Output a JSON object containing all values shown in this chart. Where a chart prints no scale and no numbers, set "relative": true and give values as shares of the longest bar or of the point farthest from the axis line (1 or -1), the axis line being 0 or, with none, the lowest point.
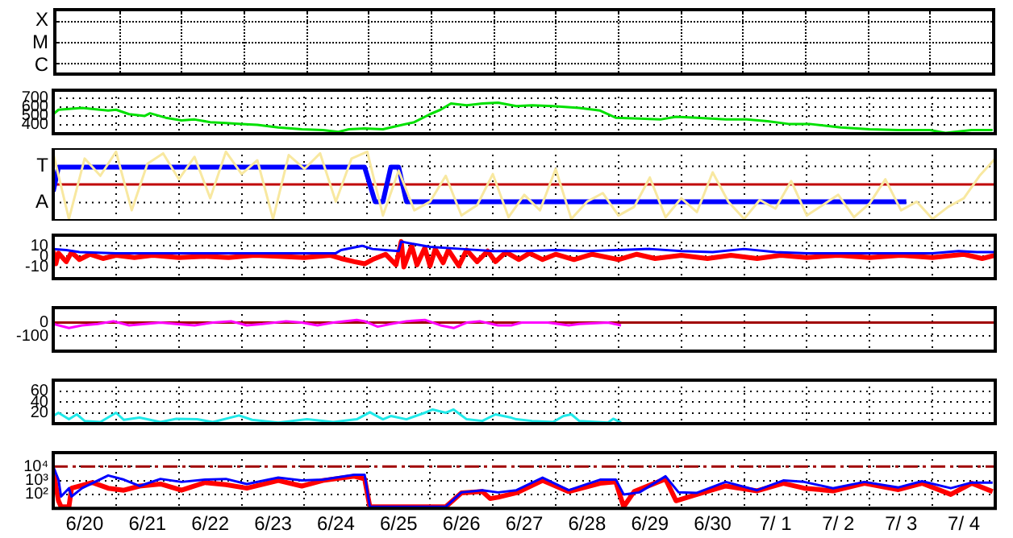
{
  "chart_data": [
    {
      "type": "other",
      "annotations": [
        "X",
        "M",
        "C"
      ]
    },
    {
      "type": "line",
      "marker": "none",
      "grid": true,
      "tick_labels": "y",
      "xlim": [
        "--06-20",
        "--07-05"
      ],
      "xticks": [
        {
          "value": "--06-21",
          "label": null
        },
        {
          "value": "--06-22",
          "label": null
        },
        {
          "value": "--06-23",
          "label": null
        },
        {
          "value": "--06-24",
          "label": null
        },
        {
          "value": "--06-25",
          "label": null
        },
        {
          "value": "--06-26",
          "label": null
        },
        {
          "value": "--06-27",
          "label": null
        },
        {
          "value": "--06-28",
          "label": null
        },
        {
          "value": "--06-29",
          "label": null
        },
        {
          "value": "--06-30",
          "label": null
        },
        {
          "value": "--07-01",
          "label": null
        },
        {
          "value": "--07-02",
          "label": null
        },
        {
          "value": "--07-03",
          "label": null
        },
        {
          "value": "--07-04",
          "label": null
        }
      ],
      "ylim": [
        300,
        790
      ],
      "yticks": [
        400,
        500,
        600,
        700
      ],
      "series": [
        {
          "color": "#00e000",
          "x": [
            "--06-20T00:00",
            "--06-20T02:00",
            "--06-20T11:00",
            "--06-20T21:00",
            "--06-21T00:00",
            "--06-21T05:00",
            "--06-21T11:00",
            "--06-21T13:00",
            "--06-21T19:00",
            "--06-22T01:00",
            "--06-22T06:00",
            "--06-22T12:00",
            "--06-22T18:00",
            "--06-23T00:00",
            "--06-23T06:00",
            "--06-23T14:00",
            "--06-23T23:00",
            "--06-24T07:00",
            "--06-24T13:00",
            "--06-24T17:00",
            "--06-24T23:00",
            "--06-25T06:00",
            "--06-25T12:00",
            "--06-25T18:00",
            "--06-26T00:00",
            "--06-26T04:00",
            "--06-26T08:00",
            "--06-26T14:00",
            "--06-26T20:00",
            "--06-27T02:00",
            "--06-27T09:00",
            "--06-27T15:00",
            "--06-27T23:00",
            "--06-28T09:00",
            "--06-28T17:00",
            "--06-28T23:00",
            "--06-29T08:00",
            "--06-29T16:00",
            "--06-29T22:00",
            "--06-30T06:00",
            "--06-30T17:00",
            "--07-01T01:00",
            "--07-01T09:00",
            "--07-01T17:00",
            "--07-02T01:00",
            "--07-02T13:00",
            "--07-03T00:00",
            "--07-03T11:00",
            "--07-03T23:00",
            "--07-04T05:00",
            "--07-04T15:00",
            "--07-04T23:00"
          ],
          "values": [
            520,
            570,
            590,
            560,
            570,
            520,
            500,
            530,
            480,
            450,
            460,
            430,
            420,
            410,
            400,
            370,
            350,
            340,
            320,
            350,
            360,
            350,
            390,
            430,
            520,
            570,
            640,
            620,
            640,
            650,
            610,
            620,
            610,
            590,
            560,
            480,
            470,
            460,
            490,
            480,
            460,
            460,
            440,
            410,
            410,
            370,
            350,
            340,
            340,
            310,
            340,
            340
          ]
        }
      ]
    },
    {
      "type": "line",
      "marker": "none",
      "grid": true,
      "relative": true,
      "tick_labels": "y",
      "xlim": [
        "--06-20",
        "--07-05"
      ],
      "xticks": [
        {
          "value": "--06-21",
          "label": null
        },
        {
          "value": "--06-22",
          "label": null
        },
        {
          "value": "--06-23",
          "label": null
        },
        {
          "value": "--06-24",
          "label": null
        },
        {
          "value": "--06-25",
          "label": null
        },
        {
          "value": "--06-26",
          "label": null
        },
        {
          "value": "--06-27",
          "label": null
        },
        {
          "value": "--06-28",
          "label": null
        },
        {
          "value": "--06-29",
          "label": null
        },
        {
          "value": "--06-30",
          "label": null
        },
        {
          "value": "--07-01",
          "label": null
        },
        {
          "value": "--07-02",
          "label": null
        },
        {
          "value": "--07-03",
          "label": null
        },
        {
          "value": "--07-04",
          "label": null
        }
      ],
      "annotations": [
        "T",
        "A"
      ],
      "ref_lines": [
        {
          "axis": "y",
          "value": 0,
          "color": "#c00000"
        }
      ],
      "series": [
        {
          "color": "#f8e8a0",
          "x": [
            "--06-20T00:00",
            "--06-20T06:00",
            "--06-20T12:00",
            "--06-20T18:00",
            "--06-21T00:00",
            "--06-21T06:00",
            "--06-21T12:00",
            "--06-21T18:00",
            "--06-22T00:00",
            "--06-22T06:00",
            "--06-22T12:00",
            "--06-22T18:00",
            "--06-23T00:00",
            "--06-23T06:00",
            "--06-23T12:00",
            "--06-23T18:00",
            "--06-24T00:00",
            "--06-24T06:00",
            "--06-24T12:00",
            "--06-24T18:00",
            "--06-25T00:00",
            "--06-25T06:00",
            "--06-25T12:00",
            "--06-25T18:00",
            "--06-26T00:00",
            "--06-26T06:00",
            "--06-26T12:00",
            "--06-26T18:00",
            "--06-27T00:00",
            "--06-27T06:00",
            "--06-27T12:00",
            "--06-27T18:00",
            "--06-28T00:00",
            "--06-28T06:00",
            "--06-28T12:00",
            "--06-28T18:00",
            "--06-29T00:00",
            "--06-29T06:00",
            "--06-29T12:00",
            "--06-29T18:00",
            "--06-30T00:00",
            "--06-30T06:00",
            "--06-30T12:00",
            "--06-30T18:00",
            "--07-01T00:00",
            "--07-01T06:00",
            "--07-01T12:00",
            "--07-01T18:00",
            "--07-02T00:00",
            "--07-02T06:00",
            "--07-02T12:00",
            "--07-02T18:00",
            "--07-03T00:00",
            "--07-03T06:00",
            "--07-03T12:00",
            "--07-03T18:00",
            "--07-04T00:00",
            "--07-04T06:00",
            "--07-04T12:00",
            "--07-04T18:00",
            "--07-05T00:00"
          ],
          "values": [
            0.9,
            -1.0,
            0.75,
            0.25,
            0.95,
            -0.75,
            0.6,
            0.9,
            0.15,
            0.8,
            -0.4,
            0.95,
            0.3,
            0.7,
            -1.0,
            0.85,
            0.45,
            0.9,
            -0.5,
            0.75,
            0.95,
            -0.9,
            0.4,
            -0.75,
            -0.5,
            0.25,
            -0.9,
            -0.6,
            0.3,
            -0.95,
            -0.3,
            -0.75,
            0.45,
            -1.0,
            -0.5,
            -0.25,
            -0.9,
            -0.65,
            0.2,
            -0.95,
            -0.4,
            -0.8,
            0.35,
            -0.5,
            -1.0,
            -0.45,
            -0.7,
            0.1,
            -0.9,
            -0.6,
            -0.3,
            -0.95,
            -0.55,
            0.15,
            -0.75,
            -0.5,
            -1.0,
            -0.65,
            -0.4,
            0.25,
            0.75
          ]
        },
        {
          "color": "#0000ff",
          "x": [
            "--06-20T00:00",
            "--06-20T02:00",
            "--06-24T23:00",
            "--06-25T03:00",
            "--06-25T06:00",
            "--06-25T09:00",
            "--06-25T12:00",
            "--06-25T15:00",
            "--07-03T14:00"
          ],
          "values": [
            -0.2,
            0.5,
            0.5,
            -0.5,
            -0.5,
            0.5,
            0.5,
            -0.5,
            -0.5
          ]
        }
      ]
    },
    {
      "type": "line",
      "marker": "none",
      "grid": true,
      "tick_labels": "y",
      "xlim": [
        "--06-20",
        "--07-05"
      ],
      "xticks": [
        {
          "value": "--06-21",
          "label": null
        },
        {
          "value": "--06-22",
          "label": null
        },
        {
          "value": "--06-23",
          "label": null
        },
        {
          "value": "--06-24",
          "label": null
        },
        {
          "value": "--06-25",
          "label": null
        },
        {
          "value": "--06-26",
          "label": null
        },
        {
          "value": "--06-27",
          "label": null
        },
        {
          "value": "--06-28",
          "label": null
        },
        {
          "value": "--06-29",
          "label": null
        },
        {
          "value": "--06-30",
          "label": null
        },
        {
          "value": "--07-01",
          "label": null
        },
        {
          "value": "--07-02",
          "label": null
        },
        {
          "value": "--07-03",
          "label": null
        },
        {
          "value": "--07-04",
          "label": null
        }
      ],
      "ylim": [
        -21,
        20
      ],
      "yticks": [
        -10,
        0,
        10
      ],
      "series": [
        {
          "color": "#0000ff",
          "x": [
            "--06-20T00:00",
            "--06-20T05:00",
            "--06-20T10:00",
            "--06-21T00:00",
            "--06-22T00:00",
            "--06-23T00:00",
            "--06-24T00:00",
            "--06-24T12:00",
            "--06-24T14:00",
            "--06-24T22:00",
            "--06-25T02:00",
            "--06-25T07:00",
            "--06-25T12:00",
            "--06-25T13:00",
            "--06-25T17:00",
            "--06-26T00:00",
            "--06-26T12:00",
            "--06-27T00:00",
            "--06-27T12:00",
            "--06-28T00:00",
            "--06-28T12:00",
            "--06-29T00:00",
            "--06-29T12:00",
            "--06-30T00:00",
            "--06-30T12:00",
            "--07-01T00:00",
            "--07-01T12:00",
            "--07-02T00:00",
            "--07-03T00:00",
            "--07-04T00:00",
            "--07-04T10:00",
            "--07-04T17:00",
            "--07-05T00:00"
          ],
          "values": [
            7,
            6,
            4,
            3,
            3,
            3,
            3,
            3,
            6,
            10,
            7,
            6,
            5,
            14,
            12,
            9,
            7,
            5,
            5,
            6,
            5,
            6,
            7,
            5,
            4,
            7,
            4,
            3,
            3,
            3,
            5,
            4,
            4
          ]
        },
        {
          "color": "#ff0000",
          "x": [
            "--06-20T00:00",
            "--06-20T01:00",
            "--06-20T02:00",
            "--06-20T05:00",
            "--06-20T07:00",
            "--06-20T10:00",
            "--06-20T14:00",
            "--06-20T19:00",
            "--06-21T00:00",
            "--06-21T07:00",
            "--06-21T14:00",
            "--06-22T00:00",
            "--06-22T10:00",
            "--06-22T19:00",
            "--06-23T05:00",
            "--06-23T14:00",
            "--06-24T00:00",
            "--06-24T10:00",
            "--06-24T14:00",
            "--06-24T19:00",
            "--06-24T23:00",
            "--06-25T02:00",
            "--06-25T07:00",
            "--06-25T11:00",
            "--06-25T13:00",
            "--06-25T14:00",
            "--06-25T17:00",
            "--06-25T19:00",
            "--06-25T22:00",
            "--06-26T00:00",
            "--06-26T02:00",
            "--06-26T05:00",
            "--06-26T07:00",
            "--06-26T11:00",
            "--06-26T14:00",
            "--06-26T18:00",
            "--06-26T22:00",
            "--06-27T01:00",
            "--06-27T05:00",
            "--06-27T10:00",
            "--06-27T14:00",
            "--06-27T19:00",
            "--06-28T00:00",
            "--06-28T07:00",
            "--06-28T14:00",
            "--06-29T00:00",
            "--06-29T07:00",
            "--06-29T14:00",
            "--06-30T00:00",
            "--06-30T10:00",
            "--06-30T19:00",
            "--07-01T05:00",
            "--07-01T14:00",
            "--07-02T00:00",
            "--07-02T12:00",
            "--07-03T00:00",
            "--07-03T12:00",
            "--07-04T00:00",
            "--07-04T12:00",
            "--07-04T19:00",
            "--07-05T00:00"
          ],
          "values": [
            5,
            -7,
            3,
            -5,
            4,
            -3,
            2,
            -2,
            1,
            -1,
            1,
            -1,
            0,
            -1,
            1,
            0,
            -1,
            1,
            -2,
            -5,
            -7,
            -3,
            2,
            -8,
            14,
            -10,
            10,
            -8,
            8,
            -9,
            7,
            -6,
            6,
            -9,
            6,
            -5,
            5,
            -5,
            4,
            -3,
            3,
            -3,
            2,
            -3,
            2,
            -3,
            2,
            -2,
            1,
            -2,
            1,
            -2,
            1,
            -1,
            1,
            -1,
            1,
            -1,
            2,
            -2,
            1
          ]
        }
      ]
    },
    {
      "type": "line",
      "marker": "none",
      "grid": true,
      "tick_labels": "y",
      "xlim": [
        "--06-20",
        "--07-05"
      ],
      "xticks": [
        {
          "value": "--06-21",
          "label": null
        },
        {
          "value": "--06-22",
          "label": null
        },
        {
          "value": "--06-23",
          "label": null
        },
        {
          "value": "--06-24",
          "label": null
        },
        {
          "value": "--06-25",
          "label": null
        },
        {
          "value": "--06-26",
          "label": null
        },
        {
          "value": "--06-27",
          "label": null
        },
        {
          "value": "--06-28",
          "label": null
        },
        {
          "value": "--06-29",
          "label": null
        },
        {
          "value": "--06-30",
          "label": null
        },
        {
          "value": "--07-01",
          "label": null
        },
        {
          "value": "--07-02",
          "label": null
        },
        {
          "value": "--07-03",
          "label": null
        },
        {
          "value": "--07-04",
          "label": null
        }
      ],
      "ylim": [
        -210,
        110
      ],
      "yticks": [
        -100,
        0
      ],
      "ref_lines": [
        {
          "axis": "y",
          "value": 0,
          "color": "#a00000"
        }
      ],
      "series": [
        {
          "color": "#ff00ff",
          "x": [
            "--06-20T00:00",
            "--06-20T06:00",
            "--06-20T11:00",
            "--06-20T17:00",
            "--06-20T23:00",
            "--06-21T05:00",
            "--06-21T11:00",
            "--06-21T17:00",
            "--06-21T23:00",
            "--06-22T06:00",
            "--06-22T13:00",
            "--06-22T20:00",
            "--06-23T02:00",
            "--06-23T08:00",
            "--06-23T17:00",
            "--06-23T23:00",
            "--06-24T05:00",
            "--06-24T11:00",
            "--06-24T20:00",
            "--06-24T23:00",
            "--06-25T04:00",
            "--06-25T09:00",
            "--06-25T15:00",
            "--06-25T22:00",
            "--06-26T04:00",
            "--06-26T09:00",
            "--06-26T14:00",
            "--06-26T19:00",
            "--06-27T02:00",
            "--06-27T07:00",
            "--06-27T11:00",
            "--06-27T21:00",
            "--06-28T05:00",
            "--06-28T09:00",
            "--06-28T20:00",
            "--06-29T01:00"
          ],
          "values": [
            -10,
            -40,
            -20,
            -10,
            10,
            -20,
            -10,
            0,
            -10,
            -20,
            0,
            10,
            -20,
            -10,
            10,
            0,
            -20,
            0,
            20,
            10,
            -30,
            -10,
            10,
            20,
            -20,
            -40,
            0,
            10,
            -20,
            -20,
            0,
            0,
            -20,
            -10,
            0,
            -20
          ]
        }
      ]
    },
    {
      "type": "line",
      "marker": "none",
      "grid": true,
      "tick_labels": "y",
      "xlim": [
        "--06-20",
        "--07-05"
      ],
      "xticks": [
        {
          "value": "--06-21",
          "label": null
        },
        {
          "value": "--06-22",
          "label": null
        },
        {
          "value": "--06-23",
          "label": null
        },
        {
          "value": "--06-24",
          "label": null
        },
        {
          "value": "--06-25",
          "label": null
        },
        {
          "value": "--06-26",
          "label": null
        },
        {
          "value": "--06-27",
          "label": null
        },
        {
          "value": "--06-28",
          "label": null
        },
        {
          "value": "--06-29",
          "label": null
        },
        {
          "value": "--06-30",
          "label": null
        },
        {
          "value": "--07-01",
          "label": null
        },
        {
          "value": "--07-02",
          "label": null
        },
        {
          "value": "--07-03",
          "label": null
        },
        {
          "value": "--07-04",
          "label": null
        }
      ],
      "ylim": [
        0,
        80
      ],
      "yticks": [
        20,
        40,
        60
      ],
      "series": [
        {
          "color": "#20e8e8",
          "x": [
            "--06-20T00:00",
            "--06-20T02:00",
            "--06-20T06:00",
            "--06-20T09:00",
            "--06-20T12:00",
            "--06-20T18:00",
            "--06-21T00:00",
            "--06-21T03:00",
            "--06-21T09:00",
            "--06-21T17:00",
            "--06-21T23:00",
            "--06-22T07:00",
            "--06-22T13:00",
            "--06-22T23:00",
            "--06-23T04:00",
            "--06-23T14:00",
            "--06-24T01:00",
            "--06-24T11:00",
            "--06-24T20:00",
            "--06-25T01:00",
            "--06-25T06:00",
            "--06-25T09:00",
            "--06-25T15:00",
            "--06-25T22:00",
            "--06-26T01:00",
            "--06-26T06:00",
            "--06-26T09:00",
            "--06-26T14:00",
            "--06-26T20:00",
            "--06-27T01:00",
            "--06-27T07:00",
            "--06-27T09:00",
            "--06-27T15:00",
            "--06-27T23:00",
            "--06-28T03:00",
            "--06-28T06:00",
            "--06-28T09:00",
            "--06-28T20:00",
            "--06-28T22:00",
            "--06-29T01:00"
          ],
          "values": [
            14,
            20,
            8,
            17,
            5,
            3,
            20,
            7,
            11,
            3,
            9,
            8,
            3,
            15,
            7,
            2,
            8,
            3,
            8,
            21,
            8,
            14,
            8,
            20,
            26,
            20,
            26,
            8,
            5,
            17,
            11,
            8,
            5,
            3,
            14,
            17,
            5,
            2,
            9,
            2
          ]
        }
      ]
    },
    {
      "type": "line",
      "marker": "none",
      "grid": true,
      "log": "y",
      "xlim": [
        "--06-20",
        "--07-05"
      ],
      "xticks": [
        {
          "value": "--06-20T12:00",
          "label": "6/20"
        },
        {
          "value": "--06-21",
          "label": null
        },
        {
          "value": "--06-21T12:00",
          "label": "6/21"
        },
        {
          "value": "--06-22",
          "label": null
        },
        {
          "value": "--06-22T12:00",
          "label": "6/22"
        },
        {
          "value": "--06-23",
          "label": null
        },
        {
          "value": "--06-23T12:00",
          "label": "6/23"
        },
        {
          "value": "--06-24",
          "label": null
        },
        {
          "value": "--06-24T12:00",
          "label": "6/24"
        },
        {
          "value": "--06-25",
          "label": null
        },
        {
          "value": "--06-25T12:00",
          "label": "6/25"
        },
        {
          "value": "--06-26",
          "label": null
        },
        {
          "value": "--06-26T12:00",
          "label": "6/26"
        },
        {
          "value": "--06-27",
          "label": null
        },
        {
          "value": "--06-27T12:00",
          "label": "6/27"
        },
        {
          "value": "--06-28",
          "label": null
        },
        {
          "value": "--06-28T12:00",
          "label": "6/28"
        },
        {
          "value": "--06-29",
          "label": null
        },
        {
          "value": "--06-29T12:00",
          "label": "6/29"
        },
        {
          "value": "--06-30",
          "label": null
        },
        {
          "value": "--06-30T12:00",
          "label": "6/30"
        },
        {
          "value": "--07-01",
          "label": null
        },
        {
          "value": "--07-01T12:00",
          "label": "7/ 1"
        },
        {
          "value": "--07-02",
          "label": null
        },
        {
          "value": "--07-02T12:00",
          "label": "7/ 2"
        },
        {
          "value": "--07-03",
          "label": null
        },
        {
          "value": "--07-03T12:00",
          "label": "7/ 3"
        },
        {
          "value": "--07-04",
          "label": null
        },
        {
          "value": "--07-04T12:00",
          "label": "7/ 4"
        }
      ],
      "ylim": [
        10,
        100000
      ],
      "yticks": [
        {
          "value": 100,
          "label": "10²"
        },
        {
          "value": 1000,
          "label": "10³"
        },
        {
          "value": 10000,
          "label": "10⁴"
        }
      ],
      "ref_lines": [
        {
          "axis": "y",
          "value": 10000,
          "color": "#a00000",
          "line_style": "dashed"
        }
      ],
      "series": [
        {
          "color": "#0000ff",
          "x": [
            "--06-20T00:00",
            "--06-20T02:00",
            "--06-20T03:00",
            "--06-20T06:00",
            "--06-20T07:00",
            "--06-20T11:00",
            "--06-20T21:00",
            "--06-21T03:00",
            "--06-21T09:00",
            "--06-21T17:00",
            "--06-22T01:00",
            "--06-22T10:00",
            "--06-22T18:00",
            "--06-23T02:00",
            "--06-23T14:00",
            "--06-23T23:00",
            "--06-24T07:00",
            "--06-24T19:00",
            "--06-24T23:00",
            "--06-25T01:00",
            "--06-26T06:00",
            "--06-26T12:00",
            "--06-26T20:00",
            "--06-27T02:00",
            "--06-27T09:00",
            "--06-27T19:00",
            "--06-28T05:00",
            "--06-28T17:00",
            "--06-28T23:00",
            "--06-29T02:00",
            "--06-29T08:00",
            "--06-29T18:00",
            "--06-29T23:00",
            "--06-30T06:00",
            "--06-30T17:00",
            "--07-01T05:00",
            "--07-01T15:00",
            "--07-01T23:00",
            "--07-02T10:00",
            "--07-02T22:00",
            "--07-03T11:00",
            "--07-03T20:00",
            "--07-04T07:00",
            "--07-04T15:00",
            "--07-04T23:00"
          ],
          "values": [
            10000,
            1150,
            71,
            280,
            71,
            280,
            2300,
            1150,
            400,
            1300,
            790,
            1150,
            1300,
            560,
            1600,
            1000,
            1150,
            2600,
            2600,
            13,
            13,
            140,
            200,
            140,
            200,
            1600,
            200,
            1150,
            1150,
            100,
            140,
            2000,
            140,
            130,
            790,
            200,
            1000,
            790,
            280,
            790,
            320,
            890,
            280,
            710,
            710
          ]
        },
        {
          "color": "#ff0000",
          "x": [
            "--06-20T00:00",
            "--06-20T02:00",
            "--06-20T03:00",
            "--06-20T06:00",
            "--06-20T07:00",
            "--06-20T15:00",
            "--06-20T21:00",
            "--06-21T03:00",
            "--06-21T09:00",
            "--06-21T17:00",
            "--06-22T01:00",
            "--06-22T10:00",
            "--06-22T18:00",
            "--06-23T02:00",
            "--06-23T14:00",
            "--06-23T23:00",
            "--06-24T07:00",
            "--06-24T19:00",
            "--06-24T23:00",
            "--06-25T01:00",
            "--06-26T06:00",
            "--06-26T12:00",
            "--06-26T20:00",
            "--06-26T23:00",
            "--06-27T02:00",
            "--06-27T09:00",
            "--06-27T19:00",
            "--06-28T05:00",
            "--06-28T17:00",
            "--06-28T23:00",
            "--06-29T02:00",
            "--06-29T06:00",
            "--06-29T18:00",
            "--06-29T22:00",
            "--06-30T06:00",
            "--06-30T17:00",
            "--07-01T05:00",
            "--07-01T15:00",
            "--07-01T23:00",
            "--07-02T10:00",
            "--07-02T22:00",
            "--07-03T11:00",
            "--07-03T20:00",
            "--07-04T07:00",
            "--07-04T15:00",
            "--07-04T23:00"
          ],
          "values": [
            6300,
            35,
            13,
            13,
            280,
            710,
            280,
            200,
            400,
            560,
            200,
            710,
            500,
            280,
            1000,
            400,
            1000,
            2000,
            1300,
            13,
            13,
            130,
            160,
            50,
            63,
            130,
            1000,
            160,
            630,
            790,
            13,
            160,
            1300,
            35,
            100,
            400,
            180,
            630,
            280,
            180,
            630,
            220,
            630,
            100,
            630,
            160
          ]
        }
      ]
    }
  ]
}
